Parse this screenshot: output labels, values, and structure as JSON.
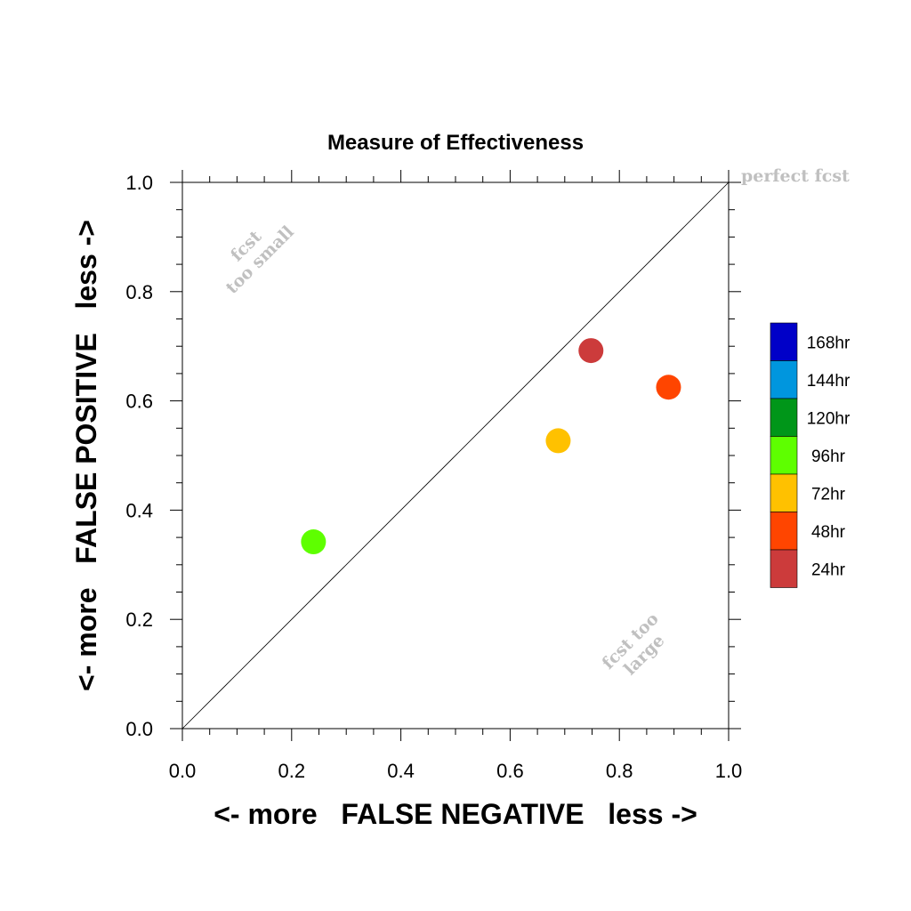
{
  "chart_data": {
    "type": "scatter",
    "title": "Measure of Effectiveness",
    "xlabel": "<- more   FALSE NEGATIVE   less ->",
    "ylabel": "<- more   FALSE POSITIVE   less ->",
    "xlim": [
      0,
      1
    ],
    "ylim": [
      0,
      1
    ],
    "x_ticks": [
      "0.0",
      "0.2",
      "0.4",
      "0.6",
      "0.8",
      "1.0"
    ],
    "y_ticks": [
      "0.0",
      "0.2",
      "0.4",
      "0.6",
      "0.8",
      "1.0"
    ],
    "x_tick_values": [
      0,
      0.2,
      0.4,
      0.6,
      0.8,
      1.0
    ],
    "y_tick_values": [
      0,
      0.2,
      0.4,
      0.6,
      0.8,
      1.0
    ],
    "grid": false,
    "reference_line": {
      "from": [
        0,
        0
      ],
      "to": [
        1,
        1
      ]
    },
    "points": [
      {
        "name": "24hr",
        "x": 0.748,
        "y": 0.692,
        "color": "#cc3b3b"
      },
      {
        "name": "48hr",
        "x": 0.89,
        "y": 0.625,
        "color": "#ff4500"
      },
      {
        "name": "72hr",
        "x": 0.688,
        "y": 0.527,
        "color": "#ffc100"
      },
      {
        "name": "96hr",
        "x": 0.24,
        "y": 0.342,
        "color": "#5eff00"
      }
    ],
    "annotations": {
      "perfect": "perfect fcst",
      "too_small": [
        "fcst",
        "too small"
      ],
      "too_large": [
        "fcst too",
        "large"
      ]
    },
    "legend": {
      "placement": "right",
      "entries": [
        {
          "label": "168hr",
          "color": "#0000c8"
        },
        {
          "label": "144hr",
          "color": "#0096de"
        },
        {
          "label": "120hr",
          "color": "#009619"
        },
        {
          "label": "96hr",
          "color": "#5eff00"
        },
        {
          "label": "72hr",
          "color": "#ffc100"
        },
        {
          "label": "48hr",
          "color": "#ff4500"
        },
        {
          "label": "24hr",
          "color": "#cc3b3b"
        }
      ]
    }
  }
}
